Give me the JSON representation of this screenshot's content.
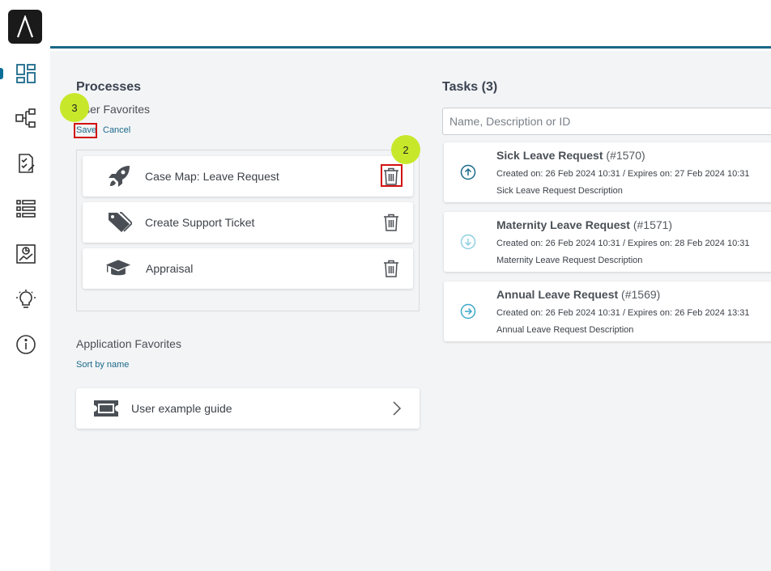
{
  "sidebar": {
    "logo_icon": "lambda-logo",
    "items": [
      {
        "icon": "dashboard-icon",
        "active": true
      },
      {
        "icon": "process-map-icon"
      },
      {
        "icon": "task-checklist-icon"
      },
      {
        "icon": "list-icon"
      },
      {
        "icon": "report-chart-icon"
      },
      {
        "icon": "lightbulb-icon"
      },
      {
        "icon": "info-icon"
      }
    ]
  },
  "processes": {
    "title": "Processes",
    "user_favorites_label": "User Favorites",
    "save_label": "Save",
    "cancel_label": "Cancel",
    "favorites": [
      {
        "label": "Case Map: Leave Request",
        "icon": "rocket-icon"
      },
      {
        "label": "Create Support Ticket",
        "icon": "tags-icon"
      },
      {
        "label": "Appraisal",
        "icon": "graduation-cap-icon"
      }
    ],
    "application_favorites_label": "Application Favorites",
    "sort_label": "Sort by name",
    "app_favorites": [
      {
        "label": "User example guide",
        "icon": "ticket-icon"
      }
    ]
  },
  "tasks": {
    "title": "Tasks (3)",
    "search_placeholder": "Name, Description or ID",
    "items": [
      {
        "name": "Sick Leave Request",
        "id": "(#1570)",
        "meta": "Created on: 26 Feb 2024 10:31 / Expires on: 27 Feb 2024 10:31",
        "description": "Sick Leave Request Description",
        "priority": "high",
        "color": "#1b6a8a"
      },
      {
        "name": "Maternity Leave Request",
        "id": "(#1571)",
        "meta": "Created on: 26 Feb 2024 10:31 / Expires on: 28 Feb 2024 10:31",
        "description": "Maternity Leave Request Description",
        "priority": "low",
        "color": "#8fcfe0"
      },
      {
        "name": "Annual Leave Request",
        "id": "(#1569)",
        "meta": "Created on: 26 Feb 2024 10:31 / Expires on: 26 Feb 2024 13:31",
        "description": "Annual Leave Request Description",
        "priority": "normal",
        "color": "#3fa8cc"
      }
    ]
  },
  "annotations": {
    "step_2": "2",
    "step_3": "3",
    "highlight_color": "#d21010",
    "badge_color": "#c7e82a"
  }
}
